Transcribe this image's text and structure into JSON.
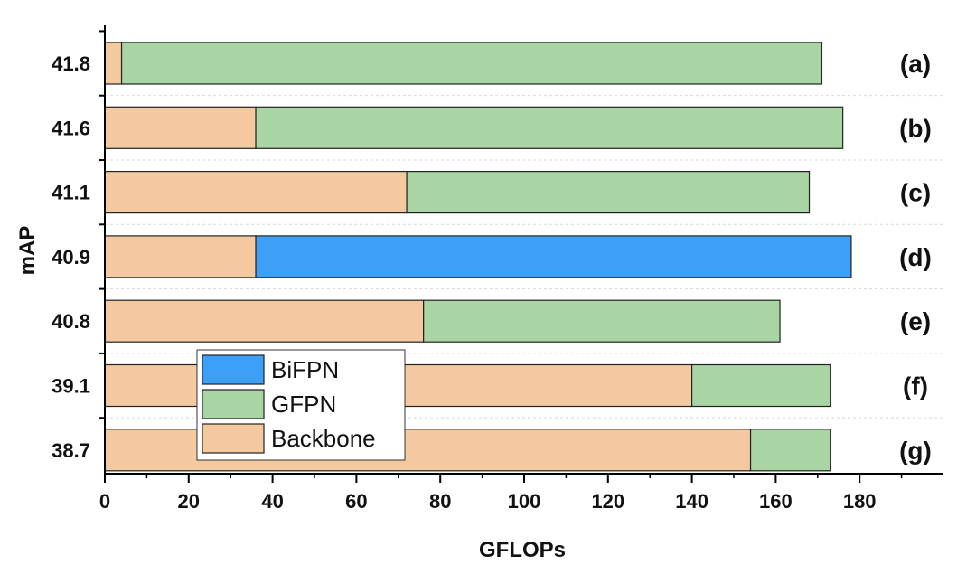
{
  "chart_data": {
    "type": "bar",
    "orientation": "horizontal",
    "stacked": true,
    "title": "",
    "xlabel": "GFLOPs",
    "ylabel": "mAP",
    "xlim": [
      0,
      195
    ],
    "xticks": [
      0,
      20,
      40,
      60,
      80,
      100,
      120,
      140,
      160,
      180
    ],
    "grid": "horizontal dashed",
    "legend_position": "bottom-left",
    "categories": [
      "41.8",
      "41.6",
      "41.1",
      "40.9",
      "40.8",
      "39.1",
      "38.7"
    ],
    "row_tags": [
      "(a)",
      "(b)",
      "(c)",
      "(d)",
      "(e)",
      "(f)",
      "(g)"
    ],
    "series": [
      {
        "name": "Backbone",
        "color": "#f5c9a0",
        "values": [
          4,
          36,
          72,
          36,
          76,
          140,
          154
        ]
      },
      {
        "name": "GFPN",
        "color": "#a9d4a4",
        "values": [
          167,
          140,
          96,
          0,
          85,
          33,
          19
        ]
      },
      {
        "name": "BiFPN",
        "color": "#3d9ff5",
        "values": [
          0,
          0,
          0,
          142,
          0,
          0,
          0
        ]
      }
    ],
    "legend": [
      "BiFPN",
      "GFPN",
      "Backbone"
    ]
  }
}
